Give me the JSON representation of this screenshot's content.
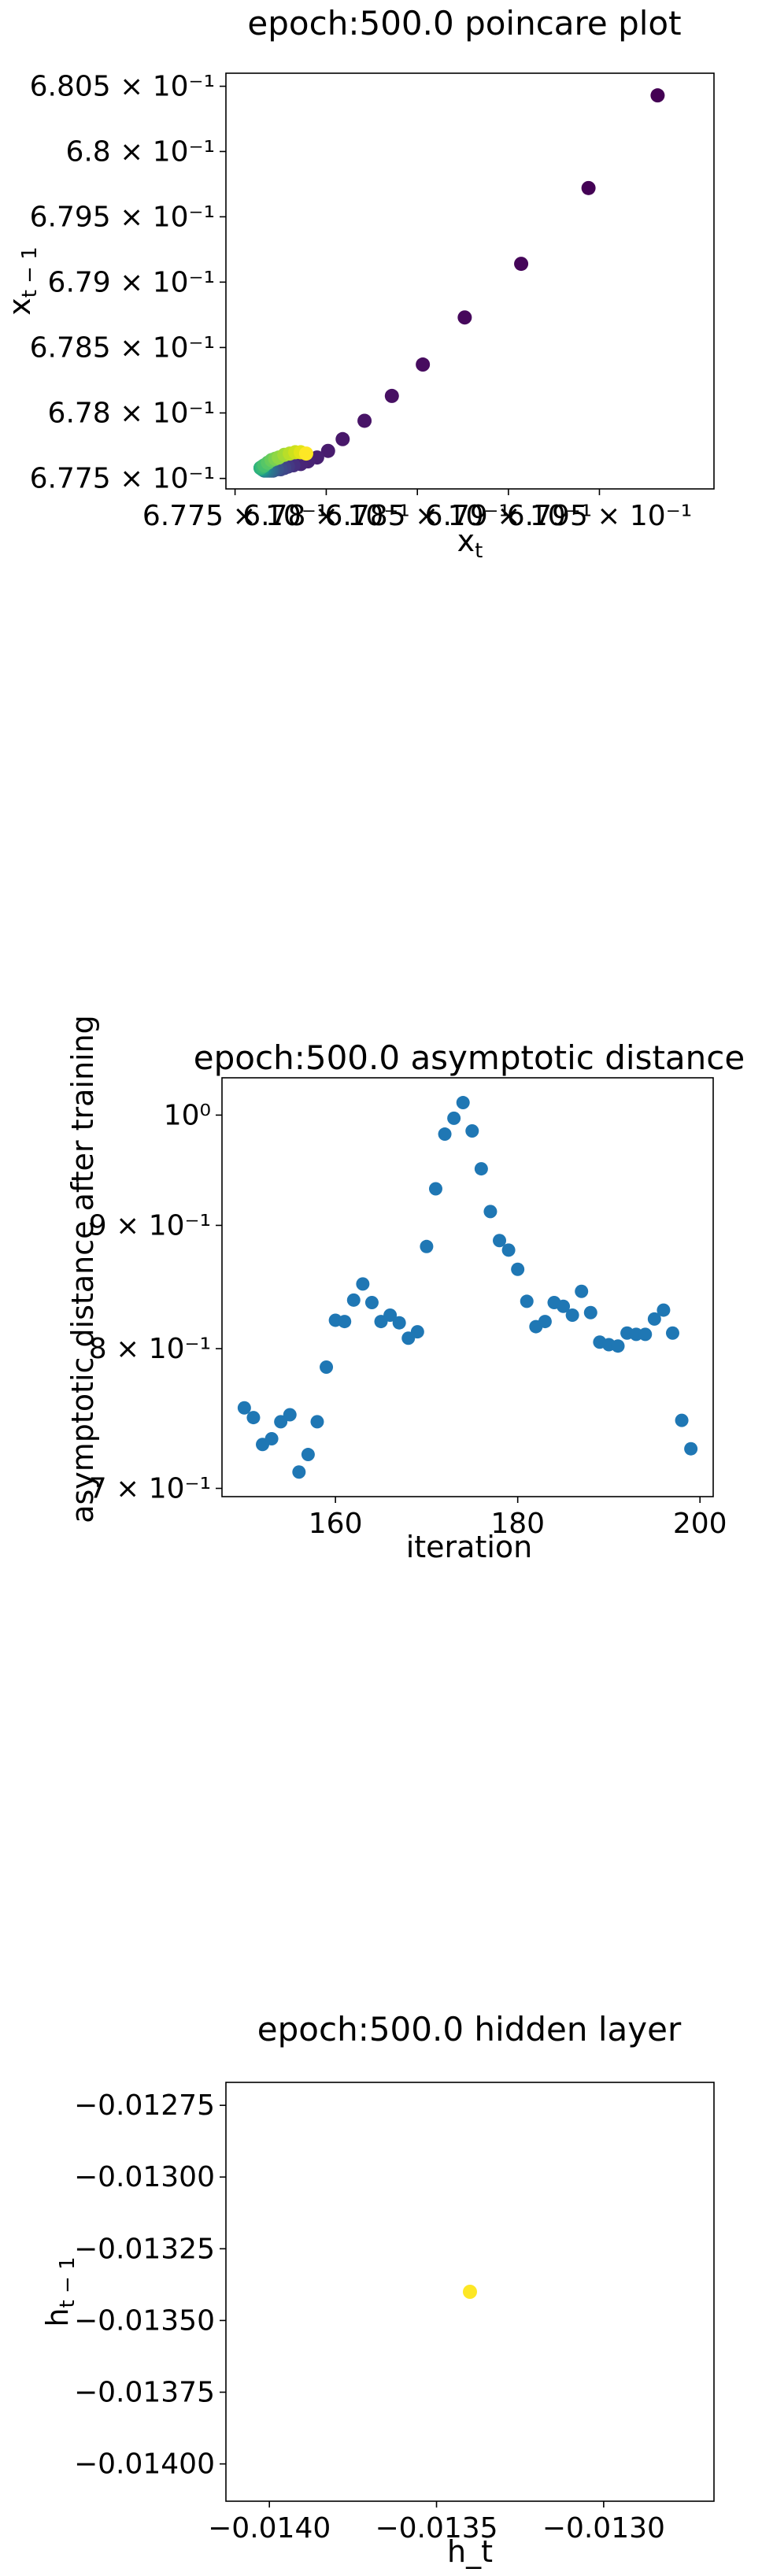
{
  "chart_data": [
    {
      "type": "scatter",
      "title": "epoch:500.0 poincare plot",
      "xlabel": "x_t",
      "ylabel": "x_{t-1}",
      "xscale": "log",
      "yscale": "log",
      "xlim": [
        0.67745,
        0.68013
      ],
      "ylim": [
        0.67742,
        0.6806
      ],
      "x_ticks": [
        {
          "value": 0.6775,
          "label": "6.775 × 10⁻¹"
        },
        {
          "value": 0.678,
          "label": "6.78 × 10⁻¹"
        },
        {
          "value": 0.6785,
          "label": "6.785 × 10⁻¹"
        },
        {
          "value": 0.679,
          "label": "6.79 × 10⁻¹"
        },
        {
          "value": 0.6795,
          "label": "6.795 × 10⁻¹"
        }
      ],
      "y_ticks": [
        {
          "value": 0.6775,
          "label": "6.775 × 10⁻¹"
        },
        {
          "value": 0.678,
          "label": "6.78 × 10⁻¹"
        },
        {
          "value": 0.6785,
          "label": "6.785 × 10⁻¹"
        },
        {
          "value": 0.679,
          "label": "6.79 × 10⁻¹"
        },
        {
          "value": 0.6795,
          "label": "6.795 × 10⁻¹"
        },
        {
          "value": 0.68,
          "label": "6.8 × 10⁻¹"
        },
        {
          "value": 0.6805,
          "label": "6.805 × 10⁻¹"
        }
      ],
      "colormap": "viridis",
      "grid": false,
      "points": [
        {
          "x": 0.67982,
          "y": 0.68043,
          "c": "#440154"
        },
        {
          "x": 0.67944,
          "y": 0.67972,
          "c": "#440255"
        },
        {
          "x": 0.67907,
          "y": 0.67914,
          "c": "#450559"
        },
        {
          "x": 0.67876,
          "y": 0.67873,
          "c": "#46085c"
        },
        {
          "x": 0.67853,
          "y": 0.67837,
          "c": "#470c5f"
        },
        {
          "x": 0.67836,
          "y": 0.67813,
          "c": "#471063"
        },
        {
          "x": 0.67821,
          "y": 0.67794,
          "c": "#481467"
        },
        {
          "x": 0.67809,
          "y": 0.6778,
          "c": "#48186a"
        },
        {
          "x": 0.67801,
          "y": 0.67771,
          "c": "#481c6e"
        },
        {
          "x": 0.67795,
          "y": 0.67766,
          "c": "#482071"
        },
        {
          "x": 0.6779,
          "y": 0.67763,
          "c": "#482374"
        },
        {
          "x": 0.67786,
          "y": 0.67761,
          "c": "#482677"
        },
        {
          "x": 0.67782,
          "y": 0.6776,
          "c": "#46307e"
        },
        {
          "x": 0.67779,
          "y": 0.67759,
          "c": "#443983"
        },
        {
          "x": 0.67777,
          "y": 0.67758,
          "c": "#414287"
        },
        {
          "x": 0.67775,
          "y": 0.67757,
          "c": "#3e4989"
        },
        {
          "x": 0.67773,
          "y": 0.67757,
          "c": "#3b528b"
        },
        {
          "x": 0.67771,
          "y": 0.67756,
          "c": "#375a8c"
        },
        {
          "x": 0.6777,
          "y": 0.67756,
          "c": "#33638d"
        },
        {
          "x": 0.67769,
          "y": 0.67756,
          "c": "#306a8e"
        },
        {
          "x": 0.67768,
          "y": 0.67756,
          "c": "#2d718e"
        },
        {
          "x": 0.67767,
          "y": 0.67756,
          "c": "#2a788e"
        },
        {
          "x": 0.67766,
          "y": 0.67756,
          "c": "#27808e"
        },
        {
          "x": 0.67766,
          "y": 0.67757,
          "c": "#25858e"
        },
        {
          "x": 0.67765,
          "y": 0.67757,
          "c": "#228d8d"
        },
        {
          "x": 0.67765,
          "y": 0.67757,
          "c": "#1f948c"
        },
        {
          "x": 0.67765,
          "y": 0.67757,
          "c": "#1f9a8a"
        },
        {
          "x": 0.67764,
          "y": 0.67758,
          "c": "#20a386"
        },
        {
          "x": 0.67764,
          "y": 0.67758,
          "c": "#24aa83"
        },
        {
          "x": 0.67764,
          "y": 0.67758,
          "c": "#2db27d"
        },
        {
          "x": 0.67765,
          "y": 0.67759,
          "c": "#38b977"
        },
        {
          "x": 0.67766,
          "y": 0.6776,
          "c": "#46c06f"
        },
        {
          "x": 0.67768,
          "y": 0.67762,
          "c": "#56c667"
        },
        {
          "x": 0.6777,
          "y": 0.67764,
          "c": "#67cc5c"
        },
        {
          "x": 0.67772,
          "y": 0.67765,
          "c": "#7ad151"
        },
        {
          "x": 0.67774,
          "y": 0.67766,
          "c": "#8fd744"
        },
        {
          "x": 0.67777,
          "y": 0.67768,
          "c": "#a2da37"
        },
        {
          "x": 0.6778,
          "y": 0.67769,
          "c": "#b8de29"
        },
        {
          "x": 0.67783,
          "y": 0.6777,
          "c": "#cde11d"
        },
        {
          "x": 0.67786,
          "y": 0.6777,
          "c": "#e2e418"
        },
        {
          "x": 0.67789,
          "y": 0.67769,
          "c": "#fde725"
        }
      ]
    },
    {
      "type": "scatter",
      "title": "epoch:500.0 asymptotic distance",
      "xlabel": "iteration",
      "ylabel": "asymptotic distance after training",
      "yscale": "log",
      "xlim": [
        147.55,
        201.45
      ],
      "ylim": [
        0.6945,
        1.0363
      ],
      "x_ticks": [
        {
          "value": 160,
          "label": "160"
        },
        {
          "value": 180,
          "label": "180"
        },
        {
          "value": 200,
          "label": "200"
        }
      ],
      "y_ticks": [
        {
          "value": 0.7,
          "label": "7 × 10⁻¹"
        },
        {
          "value": 0.8,
          "label": "8 × 10⁻¹"
        },
        {
          "value": 0.9,
          "label": "9 × 10⁻¹"
        },
        {
          "value": 1.0,
          "label": "10⁰"
        }
      ],
      "color": "#1f77b4",
      "grid": false,
      "x": [
        150,
        151,
        152,
        153,
        154,
        155,
        156,
        157,
        158,
        159,
        160,
        161,
        162,
        163,
        164,
        165,
        166,
        167,
        168,
        169,
        170,
        171,
        172,
        173,
        174,
        175,
        176,
        177,
        178,
        179,
        180,
        181,
        182,
        183,
        184,
        185,
        186,
        187,
        188,
        189,
        190,
        191,
        192,
        193,
        194,
        195,
        196,
        197,
        198,
        199
      ],
      "y": [
        0.756,
        0.749,
        0.73,
        0.734,
        0.746,
        0.751,
        0.711,
        0.723,
        0.746,
        0.786,
        0.822,
        0.821,
        0.838,
        0.851,
        0.836,
        0.821,
        0.826,
        0.82,
        0.808,
        0.813,
        0.882,
        0.932,
        0.982,
        0.997,
        1.012,
        0.985,
        0.95,
        0.912,
        0.887,
        0.879,
        0.863,
        0.837,
        0.817,
        0.821,
        0.836,
        0.833,
        0.826,
        0.845,
        0.828,
        0.805,
        0.803,
        0.802,
        0.812,
        0.811,
        0.811,
        0.823,
        0.83,
        0.812,
        0.747,
        0.727
      ]
    },
    {
      "type": "scatter",
      "title": "epoch:500.0 hidden layer",
      "xlabel": "h_t",
      "ylabel": "h_{t-1}",
      "xlim": [
        -0.01413,
        -0.01267
      ],
      "ylim": [
        -0.01413,
        -0.01267
      ],
      "x_ticks": [
        {
          "value": -0.014,
          "label": "−0.0140"
        },
        {
          "value": -0.0135,
          "label": "−0.0135"
        },
        {
          "value": -0.013,
          "label": "−0.0130"
        }
      ],
      "y_ticks": [
        {
          "value": -0.01275,
          "label": "−0.01275"
        },
        {
          "value": -0.013,
          "label": "−0.01300"
        },
        {
          "value": -0.01325,
          "label": "−0.01325"
        },
        {
          "value": -0.0135,
          "label": "−0.01350"
        },
        {
          "value": -0.01375,
          "label": "−0.01375"
        },
        {
          "value": -0.014,
          "label": "−0.01400"
        }
      ],
      "grid": false,
      "points": [
        {
          "x": -0.0134,
          "y": -0.0134,
          "c": "#fde725"
        }
      ]
    }
  ]
}
